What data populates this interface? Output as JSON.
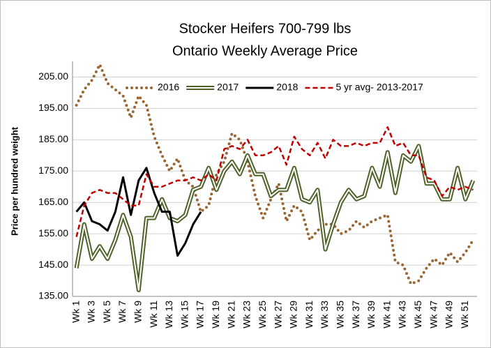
{
  "chart_data": {
    "type": "line",
    "title": "Stocker Heifers 700-799 lbs",
    "subtitle": "Ontario Weekly Average Price",
    "y_label": "Price per hundred weight",
    "categories": [
      "Wk 1",
      null,
      "Wk 3",
      null,
      "Wk 5",
      null,
      "Wk 7",
      null,
      "Wk 9",
      null,
      "Wk 11",
      null,
      "Wk 13",
      null,
      "Wk 15",
      null,
      "Wk 17",
      null,
      "Wk 19",
      null,
      "Wk 21",
      null,
      "Wk 23",
      null,
      "Wk 25",
      null,
      "Wk 27",
      null,
      "Wk 29",
      null,
      "Wk 31",
      null,
      "Wk 33",
      null,
      "Wk 35",
      null,
      "Wk 37",
      null,
      "Wk 39",
      null,
      "Wk 41",
      null,
      "Wk 43",
      null,
      "Wk 45",
      null,
      "Wk 47",
      null,
      "Wk 49",
      null,
      "Wk 51",
      null
    ],
    "series": [
      {
        "name": "2016",
        "color": "#996633",
        "style": "dotted",
        "values": [
          196,
          201,
          204,
          209,
          203,
          201,
          199,
          192,
          199,
          196,
          186,
          180,
          175,
          179,
          172,
          170,
          162,
          164,
          174,
          178,
          187,
          185,
          178,
          167,
          160,
          166,
          171,
          159,
          164,
          162,
          153,
          156,
          158,
          158,
          155,
          156,
          159,
          157,
          159,
          160,
          161,
          146,
          145,
          139,
          140,
          144,
          147,
          145,
          149,
          146,
          149,
          153
        ]
      },
      {
        "name": "2017",
        "color": "#4f6228",
        "style": "double",
        "values": [
          144,
          158,
          147,
          151,
          147,
          153,
          161,
          154,
          137,
          160,
          160,
          166,
          160,
          159,
          161,
          169,
          170,
          176,
          169,
          175,
          178,
          174,
          180,
          174,
          174,
          167,
          169,
          169,
          176,
          166,
          165,
          169,
          150,
          158,
          165,
          169,
          166,
          167,
          176,
          170,
          181,
          168,
          180,
          178,
          183,
          171,
          171,
          166,
          166,
          176,
          166,
          172
        ]
      },
      {
        "name": "2018",
        "color": "#000000",
        "style": "solid",
        "values": [
          162,
          165,
          159,
          158,
          156,
          162,
          173,
          161,
          172,
          176,
          168,
          162,
          162,
          148,
          152,
          158,
          162,
          null,
          null,
          null,
          null,
          null,
          null,
          null,
          null,
          null,
          null,
          null,
          null,
          null,
          null,
          null,
          null,
          null,
          null,
          null,
          null,
          null,
          null,
          null,
          null,
          null,
          null,
          null,
          null,
          null,
          null,
          null,
          null,
          null,
          null,
          null
        ]
      },
      {
        "name": "5 yr avg- 2013-2017",
        "color": "#c00000",
        "style": "dashed",
        "values": [
          154,
          164,
          168,
          169,
          168,
          168,
          166,
          164,
          164,
          174,
          170,
          170,
          171,
          172,
          172,
          173,
          172,
          174,
          172,
          182,
          183,
          182,
          185,
          180,
          180,
          181,
          183,
          177,
          186,
          182,
          180,
          184,
          179,
          185,
          183,
          183,
          184,
          183,
          184,
          184,
          189,
          183,
          184,
          180,
          180,
          173,
          172,
          167,
          170,
          169,
          170,
          169
        ]
      }
    ],
    "ylim": [
      135,
      210
    ],
    "yticks": [
      {
        "value": 135,
        "label": "135.00"
      },
      {
        "value": 145,
        "label": "145.00"
      },
      {
        "value": 155,
        "label": "155.00"
      },
      {
        "value": 165,
        "label": "165.00"
      },
      {
        "value": 175,
        "label": "175.00"
      },
      {
        "value": 185,
        "label": "185.00"
      },
      {
        "value": 195,
        "label": "195.00"
      },
      {
        "value": 205,
        "label": "205.00"
      }
    ],
    "grid": true,
    "legend": "top"
  }
}
